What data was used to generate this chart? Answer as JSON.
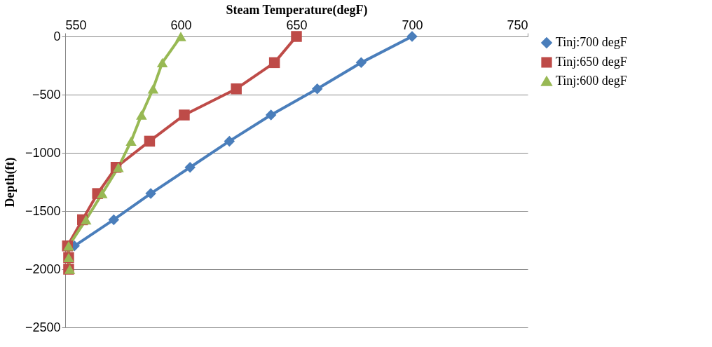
{
  "chart_data": {
    "type": "line",
    "xlabel": "Steam Temperature(degF)",
    "ylabel": "Depth(ft)",
    "xlim": [
      550,
      750
    ],
    "xticks": [
      550,
      600,
      650,
      700,
      750
    ],
    "ylim": [
      -2500,
      0
    ],
    "yticks": [
      -2500,
      -2000,
      -1500,
      -1000,
      -500,
      0
    ],
    "grid": "y",
    "legend": "right",
    "series": [
      {
        "name": "Tinj:700 degF",
        "color": "#4a7ebb",
        "marker": "diamond",
        "x": [
          700,
          678,
          659,
          639,
          621,
          604,
          587,
          571,
          554
        ],
        "values": [
          0,
          -225,
          -450,
          -675,
          -900,
          -1125,
          -1350,
          -1575,
          -1800
        ]
      },
      {
        "name": "Tinj:650 degF",
        "color": "#be4b48",
        "marker": "square",
        "x": [
          650,
          640.5,
          624,
          601.5,
          586.5,
          572,
          564,
          557.5,
          551,
          551.5,
          551.5
        ],
        "values": [
          0,
          -225,
          -450,
          -675,
          -900,
          -1125,
          -1350,
          -1575,
          -1800,
          -1900,
          -2000
        ]
      },
      {
        "name": "Tinj:600 degF",
        "color": "#98b954",
        "marker": "triangle",
        "x": [
          600,
          592,
          588,
          583,
          578.5,
          573,
          566,
          559,
          551.5,
          551.5,
          552
        ],
        "values": [
          0,
          -225,
          -450,
          -675,
          -900,
          -1125,
          -1350,
          -1575,
          -1800,
          -1900,
          -2000
        ]
      }
    ]
  }
}
